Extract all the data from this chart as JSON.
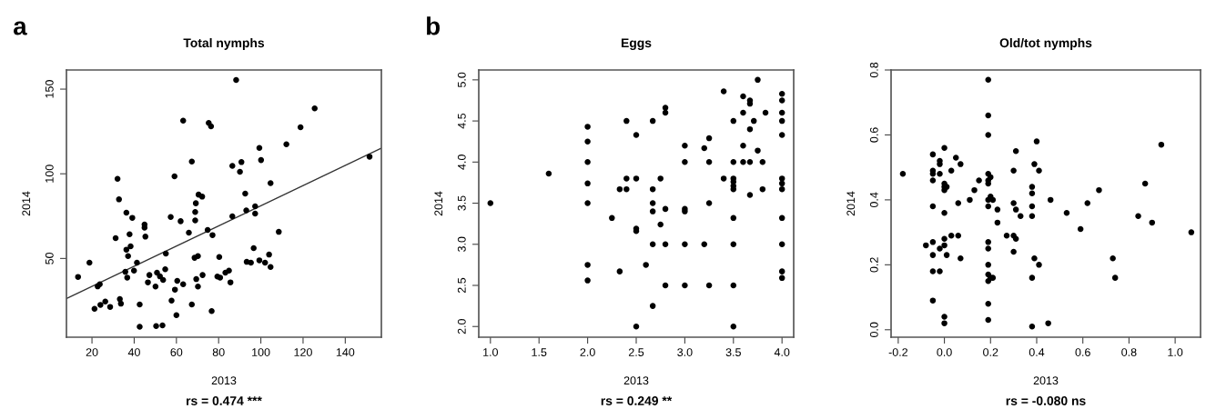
{
  "chart_data": [
    {
      "type": "scatter",
      "title": "Total nymphs",
      "xlabel": "2013",
      "ylabel": "2014",
      "xlim": [
        7.9,
        157.1
      ],
      "ylim": [
        3.5,
        161.3
      ],
      "xticks": [
        20,
        40,
        60,
        80,
        100,
        120,
        140
      ],
      "yticks": [
        50,
        100,
        150
      ],
      "marker": "circle",
      "grid": false,
      "annotations": [
        "a",
        "rs = 0.474 ***"
      ],
      "series": [
        {
          "color": "#000000",
          "x": [
            13.4,
            18.8,
            21.2,
            22.7,
            23.7,
            24.0,
            26.3,
            28.6,
            31.2,
            32.1,
            32.8,
            33.2,
            33.7,
            36.3,
            35.8,
            36.7,
            36.3,
            37.1,
            37.8,
            38.3,
            39.1,
            39.9,
            41.3,
            42.6,
            42.6,
            44.9,
            44.9,
            45.3,
            46.5,
            47.2,
            50.1,
            50.4,
            50.8,
            52.2,
            53.4,
            53.7,
            54.7,
            55.0,
            57.3,
            57.7,
            59.1,
            59.3,
            60.0,
            60.4,
            62.0,
            63.2,
            63.2,
            65.9,
            67.3,
            67.3,
            68.6,
            68.9,
            68.9,
            69.2,
            69.4,
            70.2,
            70.2,
            70.5,
            72.2,
            72.4,
            74.8,
            75.3,
            76.4,
            76.7,
            77.1,
            80.3,
            79.4,
            80.7,
            83.2,
            84.9,
            85.6,
            86.5,
            86.5,
            88.3,
            90.1,
            90.8,
            92.6,
            93.1,
            93.3,
            95.3,
            96.6,
            97.3,
            97.3,
            99.3,
            99.3,
            100.1,
            102.0,
            103.9,
            104.6,
            104.6,
            108.5,
            112.1,
            118.8,
            125.5,
            151.5
          ],
          "values": [
            39.1,
            47.5,
            20.3,
            33.5,
            34.8,
            22.6,
            24.6,
            21.4,
            62.0,
            97.0,
            84.9,
            26.0,
            23.3,
            77.0,
            42.1,
            38.7,
            55.2,
            51.4,
            64.3,
            57.2,
            74.0,
            42.8,
            47.5,
            9.7,
            22.8,
            70.0,
            68.2,
            62.9,
            35.9,
            40.2,
            33.4,
            10.1,
            41.6,
            39.4,
            10.5,
            37.3,
            43.6,
            52.9,
            74.5,
            25.1,
            98.5,
            31.6,
            16.5,
            36.8,
            72.0,
            34.8,
            131.4,
            65.2,
            107.2,
            22.8,
            50.4,
            72.5,
            77.4,
            82.6,
            37.8,
            51.4,
            33.4,
            87.7,
            86.5,
            40.2,
            66.8,
            130.0,
            128.0,
            18.9,
            63.8,
            50.9,
            39.3,
            38.7,
            41.6,
            42.8,
            35.9,
            104.7,
            74.9,
            155.4,
            101.2,
            106.9,
            88.3,
            78.4,
            48.0,
            47.5,
            56.1,
            80.8,
            76.5,
            48.9,
            115.3,
            108.1,
            47.5,
            52.3,
            45.0,
            94.5,
            65.7,
            117.4,
            127.5,
            138.6,
            110.1
          ]
        },
        {
          "type": "line",
          "color": "#333333",
          "marker": "none",
          "x": [
            7.9,
            157.1
          ],
          "values": [
            26.3,
            115.1
          ]
        }
      ]
    },
    {
      "type": "scatter",
      "title": "Eggs",
      "xlabel": "2013",
      "ylabel": "2014",
      "xlim": [
        0.88,
        4.12
      ],
      "ylim": [
        1.87,
        5.12
      ],
      "xticks": [
        {
          "value": 1,
          "label": "1.0"
        },
        1.5,
        {
          "value": 2,
          "label": "2.0"
        },
        2.5,
        {
          "value": 3,
          "label": "3.0"
        },
        3.5,
        {
          "value": 4,
          "label": "4.0"
        }
      ],
      "yticks": [
        {
          "value": 2,
          "label": "2.0"
        },
        2.5,
        {
          "value": 3,
          "label": "3.0"
        },
        3.5,
        {
          "value": 4,
          "label": "4.0"
        },
        4.5,
        {
          "value": 5,
          "label": "5.0"
        }
      ],
      "marker": "circle",
      "grid": false,
      "annotations": [
        "b",
        "rs = 0.249 **"
      ],
      "series": [
        {
          "color": "#000000",
          "x": [
            1.0,
            1.6,
            2.0,
            2.0,
            2.0,
            2.0,
            2.0,
            2.0,
            2.0,
            2.25,
            2.33,
            2.33,
            2.4,
            2.4,
            2.4,
            2.5,
            2.5,
            2.5,
            2.5,
            2.5,
            2.6,
            2.67,
            2.67,
            2.67,
            2.67,
            2.67,
            2.67,
            2.75,
            2.75,
            2.8,
            2.8,
            2.8,
            2.8,
            2.8,
            3.0,
            3.0,
            3.0,
            3.0,
            3.0,
            3.0,
            3.2,
            3.2,
            3.25,
            3.25,
            3.25,
            3.25,
            3.4,
            3.4,
            3.5,
            3.5,
            3.5,
            3.5,
            3.5,
            3.5,
            3.5,
            3.5,
            3.5,
            3.5,
            3.6,
            3.6,
            3.6,
            3.6,
            3.67,
            3.67,
            3.67,
            3.67,
            3.67,
            3.71,
            3.75,
            3.75,
            3.8,
            3.8,
            3.83,
            4.0,
            4.0,
            4.0,
            4.0,
            4.0,
            4.0,
            4.0,
            4.0,
            4.0,
            4.0,
            4.0,
            4.0
          ],
          "values": [
            3.5,
            3.86,
            4.43,
            4.25,
            4.0,
            3.74,
            3.5,
            2.75,
            2.56,
            3.32,
            3.67,
            2.67,
            4.5,
            3.8,
            3.67,
            4.33,
            3.8,
            3.19,
            3.16,
            2.0,
            2.75,
            4.5,
            3.67,
            3.5,
            3.4,
            3.0,
            2.25,
            3.8,
            3.24,
            4.66,
            4.6,
            3.43,
            3.0,
            2.5,
            4.2,
            4.0,
            3.43,
            3.4,
            3.0,
            2.5,
            4.17,
            3.0,
            4.29,
            4.0,
            3.5,
            2.5,
            4.86,
            3.8,
            4.5,
            4.0,
            3.8,
            3.76,
            3.71,
            3.67,
            3.32,
            3.0,
            2.5,
            2.0,
            4.8,
            4.6,
            4.2,
            4.0,
            4.75,
            4.71,
            4.4,
            4.0,
            3.6,
            4.5,
            4.14,
            5.0,
            4.0,
            3.67,
            4.6,
            4.83,
            4.75,
            4.6,
            4.5,
            4.33,
            3.8,
            3.74,
            3.67,
            3.32,
            3.0,
            2.67,
            2.59
          ]
        }
      ]
    },
    {
      "type": "scatter",
      "title": "Old/tot nymphs",
      "xlabel": "2013",
      "ylabel": "2014",
      "xlim": [
        -0.231,
        1.11
      ],
      "ylim": [
        -0.023,
        0.8
      ],
      "xticks": [
        -0.2,
        {
          "value": 0,
          "label": "0.0"
        },
        0.2,
        0.4,
        0.6,
        0.8,
        {
          "value": 1,
          "label": "1.0"
        }
      ],
      "yticks": [
        {
          "value": 0,
          "label": "0.0"
        },
        0.2,
        0.4,
        0.6,
        0.8
      ],
      "marker": "circle",
      "grid": false,
      "annotations": [
        "rs = -0.080 ns"
      ],
      "series": [
        {
          "color": "#000000",
          "x": [
            -0.18,
            -0.08,
            -0.05,
            -0.05,
            -0.05,
            -0.05,
            -0.05,
            -0.05,
            -0.05,
            -0.05,
            -0.05,
            -0.02,
            -0.02,
            -0.02,
            -0.02,
            -0.02,
            0.0,
            0.0,
            0.0,
            0.0,
            0.0,
            0.0,
            0.0,
            0.0,
            0.0,
            0.01,
            0.01,
            0.03,
            0.03,
            0.05,
            0.06,
            0.06,
            0.07,
            0.07,
            0.11,
            0.13,
            0.15,
            0.19,
            0.19,
            0.19,
            0.19,
            0.19,
            0.19,
            0.19,
            0.19,
            0.19,
            0.19,
            0.19,
            0.19,
            0.19,
            0.19,
            0.19,
            0.2,
            0.2,
            0.21,
            0.21,
            0.2,
            0.23,
            0.23,
            0.27,
            0.3,
            0.3,
            0.3,
            0.3,
            0.31,
            0.31,
            0.31,
            0.33,
            0.38,
            0.38,
            0.38,
            0.38,
            0.38,
            0.38,
            0.39,
            0.39,
            0.4,
            0.41,
            0.41,
            0.45,
            0.46,
            0.53,
            0.59,
            0.62,
            0.67,
            0.73,
            0.74,
            0.84,
            0.87,
            0.9,
            0.94,
            1.07
          ],
          "values": [
            0.48,
            0.26,
            0.54,
            0.49,
            0.48,
            0.46,
            0.38,
            0.27,
            0.23,
            0.18,
            0.09,
            0.52,
            0.51,
            0.48,
            0.25,
            0.18,
            0.56,
            0.45,
            0.44,
            0.43,
            0.36,
            0.28,
            0.26,
            0.04,
            0.02,
            0.44,
            0.23,
            0.49,
            0.29,
            0.53,
            0.39,
            0.29,
            0.51,
            0.22,
            0.4,
            0.43,
            0.46,
            0.77,
            0.66,
            0.6,
            0.48,
            0.46,
            0.45,
            0.4,
            0.38,
            0.27,
            0.25,
            0.2,
            0.17,
            0.15,
            0.08,
            0.03,
            0.41,
            0.47,
            0.4,
            0.16,
            0.16,
            0.37,
            0.33,
            0.29,
            0.49,
            0.39,
            0.29,
            0.24,
            0.55,
            0.28,
            0.37,
            0.35,
            0.44,
            0.42,
            0.38,
            0.35,
            0.16,
            0.01,
            0.51,
            0.22,
            0.58,
            0.49,
            0.2,
            0.02,
            0.4,
            0.36,
            0.31,
            0.39,
            0.43,
            0.22,
            0.16,
            0.35,
            0.45,
            0.33,
            0.57,
            0.3
          ]
        }
      ]
    }
  ]
}
